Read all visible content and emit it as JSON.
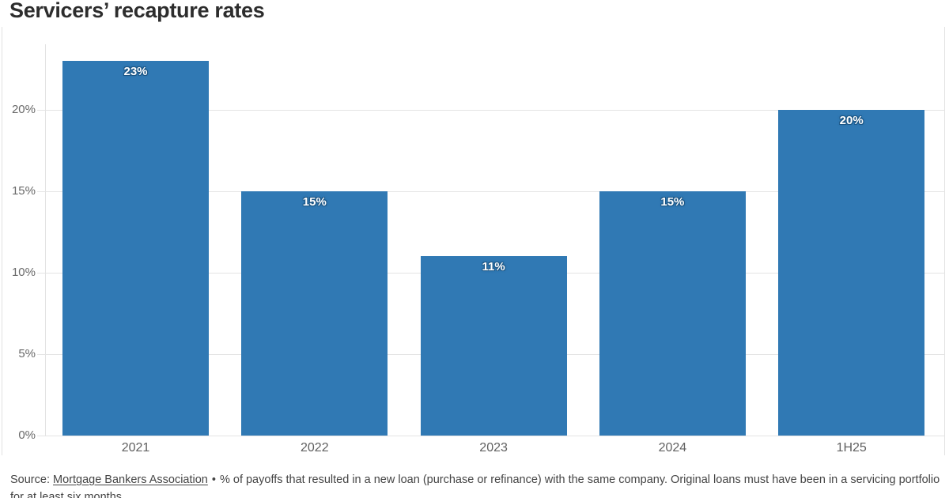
{
  "header": {
    "title": "Servicers’ recapture rates"
  },
  "chart_data": {
    "type": "bar",
    "title": "Servicers’ recapture rates",
    "categories": [
      "2021",
      "2022",
      "2023",
      "2024",
      "1H25"
    ],
    "values": [
      23,
      15,
      11,
      15,
      20
    ],
    "bar_labels": [
      "23%",
      "15%",
      "11%",
      "15%",
      "20%"
    ],
    "xlabel": "",
    "ylabel": "",
    "ylim": [
      0,
      24
    ],
    "yticks": [
      "0%",
      "5%",
      "10%",
      "15%",
      "20%"
    ],
    "ytick_values": [
      0,
      5,
      10,
      15,
      20
    ],
    "grid": true,
    "legend": "none",
    "bar_color": "#3079b4",
    "bar_label_color": "#ffffff",
    "bar_label_outline_color": "#1c5685",
    "gridline_color": "#e4e4e4",
    "axis_text_color": "#696969"
  },
  "footer": {
    "source_prefix": "Source:",
    "source_link": "Mortgage Bankers Association",
    "bullet": "•",
    "note": "% of payoffs that resulted in a new loan (purchase or refinance) with the same company. Original loans must have been in a servicing portfolio for at least six months."
  }
}
